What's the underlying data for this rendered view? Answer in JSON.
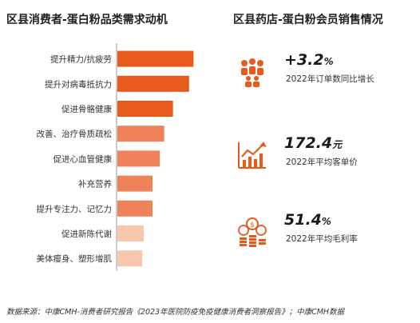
{
  "left_panel": {
    "title": "区县消费者-蛋白粉品类需求动机"
  },
  "right_panel": {
    "title": "区县药店-蛋白粉会员销售情况"
  },
  "chart_data": {
    "type": "bar",
    "orientation": "horizontal",
    "title": "区县消费者-蛋白粉品类需求动机",
    "categories": [
      "提升精力/抗疲劳",
      "提升对病毒抵抗力",
      "促进骨骼健康",
      "改善、治疗骨质疏松",
      "促进心血管健康",
      "补充营养",
      "提升专注力、记忆力",
      "促进新陈代谢",
      "美体瘦身、塑形增肌"
    ],
    "values": [
      52,
      49,
      38,
      32,
      29,
      24,
      24,
      18,
      17
    ],
    "colors": [
      "#e85a1c",
      "#e85a1c",
      "#e85a1c",
      "#f0825a",
      "#f0825a",
      "#f0825a",
      "#f0825a",
      "#f7c8ae",
      "#f7c8ae"
    ],
    "xlim": [
      0,
      60
    ],
    "xlabel": "",
    "ylabel": "",
    "grid": false,
    "legend": "none"
  },
  "stats": [
    {
      "icon": "people-icon",
      "value": "+3.2",
      "unit": "%",
      "desc": "2022年订单数同比增长"
    },
    {
      "icon": "growth-chart-icon",
      "value": "172.4",
      "unit": "元",
      "desc": "2022年平均客单价"
    },
    {
      "icon": "coins-icon",
      "value": "51.4",
      "unit": "%",
      "desc": "2022年平均毛利率"
    }
  ],
  "colors": {
    "accent": "#e85a1c",
    "mid": "#f0825a",
    "light": "#f7c8ae",
    "axis": "#999999"
  },
  "source": "数据来源：中康CMH-消费者研究报告《2023年医院防疫免疫健康消费者洞察报告》；中康CMH数据"
}
